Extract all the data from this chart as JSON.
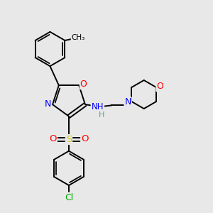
{
  "background_color": "#e8e8e8",
  "bond_color": "#000000",
  "atom_colors": {
    "N": "#0000ff",
    "O": "#ff0000",
    "S": "#cccc00",
    "Cl": "#00aa00",
    "C": "#000000",
    "H": "#5f9ea0"
  },
  "figsize": [
    3.0,
    3.0
  ],
  "dpi": 100
}
